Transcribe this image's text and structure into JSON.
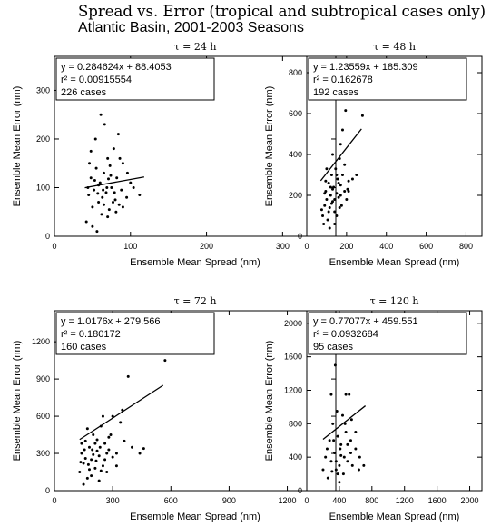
{
  "page": {
    "title": "Spread vs. Error (tropical and subtropical cases only)",
    "subtitle": "Atlantic Basin, 2001-2003 Seasons"
  },
  "chart_data": [
    {
      "type": "scatter",
      "title": "τ = 24 h",
      "xlabel": "Ensemble Mean Spread (nm)",
      "ylabel": "Ensemble Mean Error (nm)",
      "xlim": [
        0,
        370
      ],
      "ylim": [
        0,
        370
      ],
      "xticks": [
        0,
        100,
        200,
        300
      ],
      "yticks": [
        0,
        100,
        200,
        300
      ],
      "fit": {
        "slope": 0.284624,
        "intercept": 88.4053,
        "x_range": [
          40,
          118
        ]
      },
      "annotation": {
        "equation": "y = 0.284624x + 88.4053",
        "r2_label": "r² = 0.00915554",
        "cases": "226 cases"
      },
      "points": [
        [
          45,
          85
        ],
        [
          48,
          120
        ],
        [
          50,
          60
        ],
        [
          52,
          95
        ],
        [
          55,
          140
        ],
        [
          58,
          70
        ],
        [
          60,
          110
        ],
        [
          62,
          45
        ],
        [
          65,
          130
        ],
        [
          68,
          90
        ],
        [
          70,
          160
        ],
        [
          72,
          55
        ],
        [
          75,
          100
        ],
        [
          78,
          180
        ],
        [
          80,
          75
        ],
        [
          82,
          120
        ],
        [
          85,
          65
        ],
        [
          88,
          95
        ],
        [
          90,
          150
        ],
        [
          95,
          80
        ],
        [
          100,
          110
        ],
        [
          42,
          30
        ],
        [
          46,
          150
        ],
        [
          50,
          20
        ],
        [
          54,
          200
        ],
        [
          58,
          105
        ],
        [
          63,
          80
        ],
        [
          66,
          230
        ],
        [
          70,
          40
        ],
        [
          74,
          125
        ],
        [
          79,
          90
        ],
        [
          84,
          210
        ],
        [
          90,
          60
        ],
        [
          96,
          130
        ],
        [
          104,
          100
        ],
        [
          112,
          85
        ],
        [
          48,
          175
        ],
        [
          53,
          115
        ],
        [
          61,
          250
        ],
        [
          69,
          100
        ],
        [
          77,
          70
        ],
        [
          86,
          160
        ],
        [
          44,
          100
        ],
        [
          57,
          88
        ],
        [
          65,
          65
        ],
        [
          73,
          145
        ],
        [
          56,
          10
        ],
        [
          64,
          95
        ],
        [
          71,
          118
        ],
        [
          81,
          50
        ]
      ]
    },
    {
      "type": "scatter",
      "title": "τ = 48 h",
      "xlabel": "Ensemble Mean Spread (nm)",
      "ylabel": "Ensemble Mean Error (nm)",
      "xlim": [
        0,
        880
      ],
      "ylim": [
        0,
        880
      ],
      "xticks": [
        0,
        200,
        400,
        600,
        800
      ],
      "yticks": [
        0,
        200,
        400,
        600,
        800
      ],
      "fit": {
        "slope": 1.23559,
        "intercept": 185.309,
        "x_range": [
          70,
          275
        ]
      },
      "annotation": {
        "equation": "y = 1.23559x + 185.309",
        "r2_label": "r² = 0.162678",
        "cases": "192 cases"
      },
      "points": [
        [
          80,
          100
        ],
        [
          90,
          150
        ],
        [
          95,
          220
        ],
        [
          100,
          180
        ],
        [
          105,
          80
        ],
        [
          110,
          260
        ],
        [
          115,
          140
        ],
        [
          120,
          200
        ],
        [
          125,
          300
        ],
        [
          130,
          170
        ],
        [
          135,
          240
        ],
        [
          140,
          120
        ],
        [
          145,
          330
        ],
        [
          150,
          210
        ],
        [
          155,
          280
        ],
        [
          160,
          190
        ],
        [
          165,
          380
        ],
        [
          170,
          250
        ],
        [
          175,
          150
        ],
        [
          180,
          300
        ],
        [
          190,
          220
        ],
        [
          200,
          180
        ],
        [
          210,
          270
        ],
        [
          85,
          60
        ],
        [
          100,
          330
        ],
        [
          115,
          40
        ],
        [
          130,
          400
        ],
        [
          150,
          100
        ],
        [
          170,
          450
        ],
        [
          190,
          350
        ],
        [
          210,
          220
        ],
        [
          230,
          280
        ],
        [
          250,
          300
        ],
        [
          120,
          240
        ],
        [
          140,
          180
        ],
        [
          160,
          260
        ],
        [
          180,
          520
        ],
        [
          195,
          615
        ],
        [
          280,
          590
        ],
        [
          90,
          210
        ],
        [
          110,
          120
        ],
        [
          130,
          230
        ],
        [
          150,
          300
        ],
        [
          170,
          200
        ],
        [
          95,
          270
        ],
        [
          125,
          160
        ],
        [
          165,
          140
        ],
        [
          205,
          230
        ],
        [
          75,
          130
        ],
        [
          140,
          60
        ]
      ]
    },
    {
      "type": "scatter",
      "title": "τ = 72 h",
      "xlabel": "Ensemble Mean Spread (nm)",
      "ylabel": "Ensemble Mean Error (nm)",
      "xlim": [
        0,
        1450
      ],
      "ylim": [
        0,
        1450
      ],
      "xticks": [
        0,
        300,
        600,
        900,
        1200
      ],
      "yticks": [
        0,
        300,
        600,
        900,
        1200
      ],
      "fit": {
        "slope": 1.0176,
        "intercept": 279.566,
        "x_range": [
          130,
          560
        ]
      },
      "annotation": {
        "equation": "y = 1.0176x + 279.566",
        "r2_label": "r² = 0.180172",
        "cases": "160 cases"
      },
      "points": [
        [
          130,
          150
        ],
        [
          140,
          300
        ],
        [
          150,
          220
        ],
        [
          160,
          400
        ],
        [
          170,
          100
        ],
        [
          180,
          350
        ],
        [
          190,
          250
        ],
        [
          200,
          450
        ],
        [
          210,
          180
        ],
        [
          220,
          320
        ],
        [
          230,
          280
        ],
        [
          240,
          520
        ],
        [
          250,
          200
        ],
        [
          260,
          380
        ],
        [
          270,
          150
        ],
        [
          280,
          430
        ],
        [
          300,
          600
        ],
        [
          320,
          300
        ],
        [
          350,
          650
        ],
        [
          150,
          50
        ],
        [
          170,
          500
        ],
        [
          190,
          120
        ],
        [
          210,
          380
        ],
        [
          230,
          80
        ],
        [
          250,
          600
        ],
        [
          270,
          300
        ],
        [
          290,
          450
        ],
        [
          320,
          200
        ],
        [
          340,
          550
        ],
        [
          360,
          400
        ],
        [
          400,
          350
        ],
        [
          440,
          300
        ],
        [
          460,
          340
        ],
        [
          380,
          920
        ],
        [
          570,
          1050
        ],
        [
          140,
          380
        ],
        [
          160,
          260
        ],
        [
          180,
          170
        ],
        [
          200,
          290
        ],
        [
          220,
          410
        ],
        [
          240,
          160
        ],
        [
          260,
          250
        ],
        [
          280,
          330
        ],
        [
          300,
          270
        ],
        [
          135,
          230
        ],
        [
          155,
          330
        ],
        [
          175,
          210
        ],
        [
          195,
          330
        ],
        [
          215,
          240
        ],
        [
          235,
          350
        ]
      ]
    },
    {
      "type": "scatter",
      "title": "τ = 120 h",
      "xlabel": "Ensemble Mean Spread (nm)",
      "ylabel": "Ensemble Mean Error (nm)",
      "xlim": [
        0,
        2150
      ],
      "ylim": [
        0,
        2150
      ],
      "xticks": [
        0,
        400,
        800,
        1200,
        1600,
        2000
      ],
      "yticks": [
        0,
        400,
        800,
        1200,
        1600,
        2000
      ],
      "fit": {
        "slope": 0.77077,
        "intercept": 459.551,
        "x_range": [
          200,
          720
        ]
      },
      "annotation": {
        "equation": "y = 0.77077x + 459.551",
        "r2_label": "r² = 0.0932684",
        "cases": "95 cases"
      },
      "points": [
        [
          200,
          250
        ],
        [
          230,
          400
        ],
        [
          260,
          150
        ],
        [
          280,
          600
        ],
        [
          300,
          350
        ],
        [
          320,
          800
        ],
        [
          340,
          450
        ],
        [
          360,
          250
        ],
        [
          380,
          650
        ],
        [
          400,
          300
        ],
        [
          420,
          550
        ],
        [
          440,
          900
        ],
        [
          460,
          400
        ],
        [
          480,
          700
        ],
        [
          500,
          350
        ],
        [
          520,
          1150
        ],
        [
          540,
          600
        ],
        [
          560,
          300
        ],
        [
          600,
          500
        ],
        [
          640,
          250
        ],
        [
          700,
          300
        ],
        [
          300,
          1150
        ],
        [
          350,
          1500
        ],
        [
          480,
          1150
        ],
        [
          400,
          100
        ],
        [
          450,
          200
        ],
        [
          250,
          500
        ],
        [
          330,
          600
        ],
        [
          370,
          950
        ],
        [
          420,
          420
        ],
        [
          470,
          800
        ],
        [
          550,
          850
        ],
        [
          600,
          700
        ],
        [
          650,
          400
        ],
        [
          380,
          200
        ],
        [
          410,
          500
        ],
        [
          360,
          350
        ],
        [
          310,
          230
        ],
        [
          500,
          550
        ],
        [
          540,
          450
        ]
      ]
    }
  ]
}
